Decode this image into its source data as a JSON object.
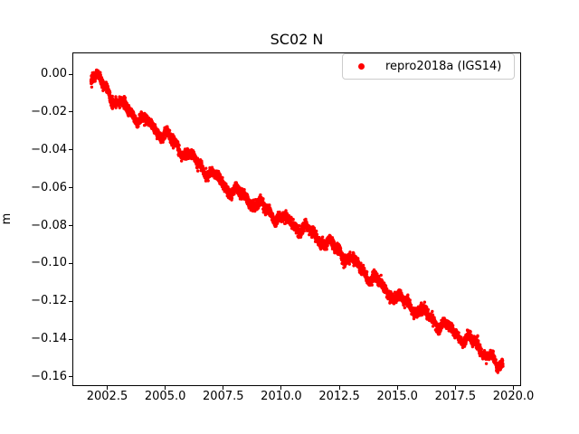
{
  "chart_data": {
    "type": "scatter",
    "title": "SC02 N",
    "xlabel": "",
    "ylabel": "m",
    "xlim": [
      2001.0,
      2020.33
    ],
    "ylim": [
      -0.1648,
      0.0115
    ],
    "xticks": [
      2002.5,
      2005.0,
      2007.5,
      2010.0,
      2012.5,
      2015.0,
      2017.5,
      2020.0
    ],
    "xtick_labels": [
      "2002.5",
      "2005.0",
      "2007.5",
      "2010.0",
      "2012.5",
      "2015.0",
      "2017.5",
      "2020.0"
    ],
    "yticks": [
      0.0,
      -0.02,
      -0.04,
      -0.06,
      -0.08,
      -0.1,
      -0.12,
      -0.14,
      -0.16
    ],
    "ytick_labels": [
      "0.00",
      "−0.02",
      "−0.04",
      "−0.06",
      "−0.08",
      "−0.10",
      "−0.12",
      "−0.14",
      "−0.16"
    ],
    "grid": false,
    "legend_position": "upper right",
    "series": [
      {
        "name": "repro2018a (IGS14)",
        "color": "#ff0000",
        "marker": "dot",
        "marker_radius_px": 1.7,
        "x_start": 2001.8,
        "x_end": 2019.55,
        "n_points": 4800,
        "trend_anchors_x": [
          2001.8,
          2002.0,
          2002.5,
          2003.0,
          2004.0,
          2005.0,
          2006.0,
          2007.5,
          2008.0,
          2009.0,
          2010.0,
          2011.0,
          2012.5,
          2013.0,
          2014.0,
          2015.0,
          2016.0,
          2017.5,
          2018.6,
          2019.0,
          2019.3,
          2019.45,
          2019.55
        ],
        "trend_anchors_y": [
          -0.0005,
          -0.0015,
          -0.0086,
          -0.0155,
          -0.0243,
          -0.0324,
          -0.0429,
          -0.0582,
          -0.062,
          -0.069,
          -0.0768,
          -0.0816,
          -0.0935,
          -0.0983,
          -0.1088,
          -0.1183,
          -0.1255,
          -0.1369,
          -0.1445,
          -0.149,
          -0.1555,
          -0.1545,
          -0.1525
        ],
        "seasonal": [
          {
            "period": 1.0,
            "amplitude": 0.0022,
            "phase": 0.3
          },
          {
            "period": 0.5,
            "amplitude": 0.0008,
            "phase": 1.2
          },
          {
            "period": 0.37,
            "amplitude": 0.0007,
            "phase": 0.5
          }
        ],
        "noise_sigma": 0.0013,
        "seed": 42
      }
    ]
  }
}
